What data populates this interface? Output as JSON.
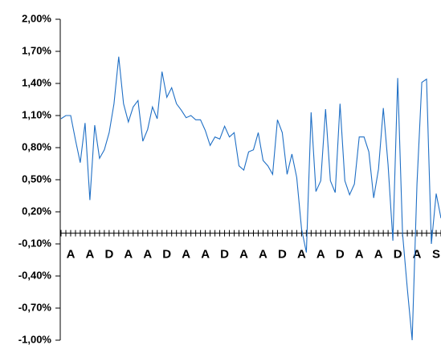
{
  "chart_data": {
    "type": "line",
    "categories": [
      null,
      "A",
      null,
      null,
      null,
      "A",
      null,
      null,
      null,
      "D",
      null,
      null,
      null,
      "A",
      null,
      null,
      null,
      "A",
      null,
      null,
      null,
      "D",
      null,
      null,
      null,
      "A",
      null,
      null,
      null,
      "A",
      null,
      null,
      null,
      "D",
      null,
      null,
      null,
      "A",
      null,
      null,
      null,
      "A",
      null,
      null,
      null,
      "D",
      null,
      null,
      null,
      "A",
      null,
      null,
      null,
      "A",
      null,
      null,
      null,
      "D",
      null,
      null,
      null,
      "A",
      null,
      null,
      null,
      "A",
      null,
      null,
      null,
      "D",
      null,
      null,
      null,
      "A",
      null,
      null,
      null,
      "S",
      null,
      null
    ],
    "series": [
      {
        "color": "#1f6fc5",
        "values": [
          1.07,
          1.1,
          1.1,
          0.87,
          0.66,
          1.03,
          0.31,
          1.01,
          0.7,
          0.78,
          0.94,
          1.21,
          1.65,
          1.21,
          1.04,
          1.18,
          1.24,
          0.86,
          0.97,
          1.18,
          1.07,
          1.51,
          1.27,
          1.36,
          1.21,
          1.15,
          1.08,
          1.1,
          1.06,
          1.06,
          0.96,
          0.82,
          0.9,
          0.88,
          1.0,
          0.9,
          0.94,
          0.63,
          0.59,
          0.76,
          0.78,
          0.94,
          0.68,
          0.63,
          0.55,
          1.06,
          0.94,
          0.55,
          0.74,
          0.52,
          0.04,
          -0.18,
          1.13,
          0.39,
          0.49,
          1.16,
          0.49,
          0.38,
          1.21,
          0.49,
          0.36,
          0.46,
          0.9,
          0.9,
          0.76,
          0.33,
          0.6,
          1.17,
          0.64,
          -0.07,
          1.45,
          0.0,
          -0.52,
          -1.0,
          0.46,
          1.41,
          1.44,
          -0.1,
          0.37,
          0.14
        ]
      }
    ],
    "ylim": [
      -1.0,
      2.0
    ],
    "yticks": [
      {
        "value": 2.0,
        "label": "2,00%"
      },
      {
        "value": 1.7,
        "label": "1,70%"
      },
      {
        "value": 1.4,
        "label": "1,40%"
      },
      {
        "value": 1.1,
        "label": "1,10%"
      },
      {
        "value": 0.8,
        "label": "0,80%"
      },
      {
        "value": 0.5,
        "label": "0,50%"
      },
      {
        "value": 0.2,
        "label": "0,20%"
      },
      {
        "value": -0.1,
        "label": "-0,10%"
      },
      {
        "value": -0.4,
        "label": "-0,40%"
      },
      {
        "value": -0.7,
        "label": "-0,70%"
      },
      {
        "value": -1.0,
        "label": "-1,00%"
      }
    ],
    "grid": false
  }
}
